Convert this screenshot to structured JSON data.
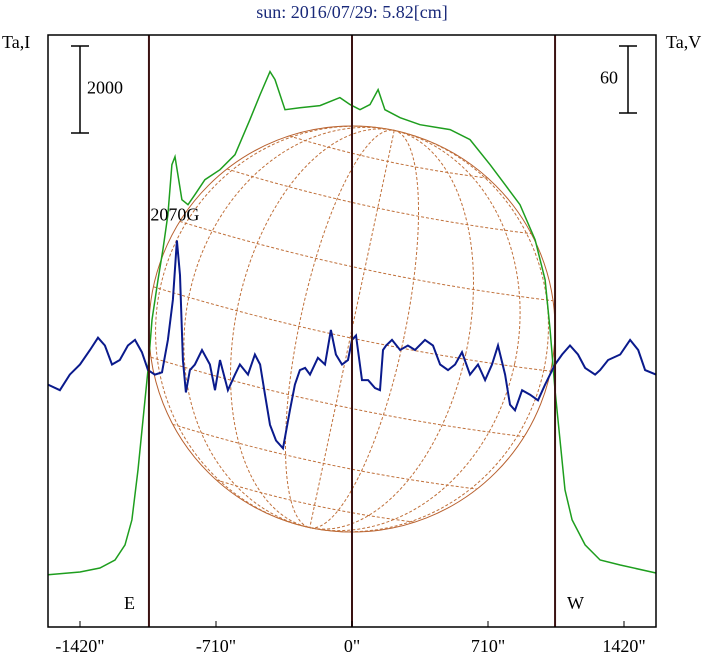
{
  "chart_data": {
    "type": "line",
    "title": "sun: 2016/07/29: 5.82[cm]",
    "y_label": "Ta,I",
    "y2_label": "Ta,V",
    "annotation": "2070G",
    "xlim": [
      -1587,
      1587
    ],
    "xticks": [
      {
        "value": -1420,
        "label": "-1420\""
      },
      {
        "value": -710,
        "label": "-710\""
      },
      {
        "value": 0,
        "label": "0\""
      },
      {
        "value": 710,
        "label": "710\""
      },
      {
        "value": 1420,
        "label": "1420\""
      }
    ],
    "ylim": [
      -1200,
      12400
    ],
    "y2lim": [
      -230,
      300
    ],
    "scale_bars": [
      {
        "axis": "y",
        "value": 2000
      },
      {
        "axis": "y2",
        "value": 60
      }
    ],
    "limb_lines": [
      {
        "value": -1060,
        "label": "E"
      },
      {
        "value": 1060,
        "label": "W"
      }
    ],
    "center_line": 0,
    "series": [
      {
        "name": "Ta,I",
        "color": "#1e9e1e",
        "x": [
          -1587,
          -1420,
          -1316,
          -1237,
          -1185,
          -1149,
          -1117,
          -1091,
          -1065,
          -1044,
          -1013,
          -987,
          -961,
          -940,
          -924,
          -909,
          -888,
          -856,
          -820,
          -768,
          -689,
          -611,
          -533,
          -480,
          -428,
          -402,
          -350,
          -272,
          -167,
          -63,
          -10,
          42,
          94,
          136,
          172,
          251,
          355,
          512,
          616,
          721,
          799,
          877,
          956,
          1008,
          1034,
          1060,
          1086,
          1112,
          1149,
          1217,
          1295,
          1400,
          1587
        ],
        "values": [
          0,
          64,
          156,
          340,
          685,
          1260,
          2409,
          3559,
          4708,
          5857,
          6777,
          7467,
          8271,
          9421,
          9605,
          9191,
          8616,
          8502,
          8731,
          9076,
          9306,
          9651,
          10455,
          11030,
          11559,
          11375,
          10685,
          10731,
          10777,
          10961,
          10800,
          10685,
          10800,
          11145,
          10685,
          10501,
          10340,
          10226,
          9996,
          9421,
          8961,
          8502,
          7697,
          6777,
          5628,
          4248,
          3099,
          1949,
          1260,
          685,
          340,
          225,
          41
        ]
      },
      {
        "name": "Ta,V",
        "color": "#0a1a8c",
        "axis": "y2",
        "x": [
          -1587,
          -1525,
          -1473,
          -1420,
          -1368,
          -1326,
          -1290,
          -1253,
          -1212,
          -1170,
          -1133,
          -1097,
          -1065,
          -1029,
          -992,
          -961,
          -935,
          -914,
          -898,
          -883,
          -867,
          -846,
          -820,
          -783,
          -742,
          -715,
          -689,
          -648,
          -611,
          -585,
          -543,
          -507,
          -480,
          -454,
          -428,
          -397,
          -360,
          -324,
          -298,
          -272,
          -245,
          -219,
          -178,
          -141,
          -110,
          -84,
          -52,
          -21,
          0,
          21,
          52,
          84,
          120,
          146,
          162,
          178,
          209,
          251,
          292,
          329,
          381,
          423,
          460,
          501,
          538,
          574,
          616,
          658,
          695,
          731,
          762,
          799,
          825,
          851,
          888,
          930,
          971,
          1008,
          1060,
          1097,
          1138,
          1180,
          1217,
          1269,
          1295,
          1337,
          1400,
          1452,
          1494,
          1530,
          1587
        ],
        "values": [
          -13,
          -18,
          -4,
          5,
          18,
          29,
          22,
          5,
          9,
          22,
          27,
          16,
          0,
          -4,
          -2,
          27,
          63,
          116,
          85,
          9,
          -20,
          0,
          5,
          18,
          5,
          -18,
          9,
          -18,
          -4,
          5,
          -4,
          14,
          5,
          -22,
          -49,
          -63,
          -70,
          -36,
          -13,
          0,
          2,
          -4,
          11,
          5,
          36,
          14,
          5,
          9,
          27,
          31,
          -9,
          -9,
          -16,
          -18,
          18,
          22,
          27,
          18,
          22,
          18,
          27,
          22,
          5,
          0,
          5,
          16,
          -4,
          5,
          -9,
          5,
          22,
          -4,
          -31,
          -36,
          -18,
          -22,
          -27,
          -13,
          5,
          14,
          22,
          14,
          2,
          -4,
          0,
          9,
          14,
          27,
          18,
          0,
          -4
        ]
      }
    ]
  }
}
